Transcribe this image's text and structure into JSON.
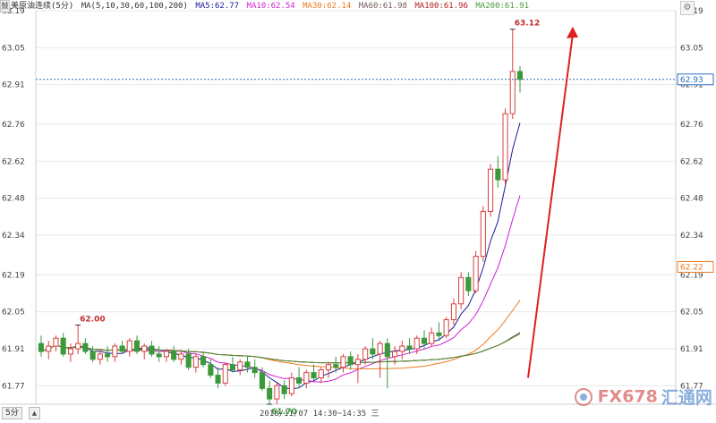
{
  "app": {
    "corner_label": "鼓",
    "symbol": "美原油连续(5分)",
    "ma_label": "MA(5,10,30,60,100,200)",
    "period_label": "5分",
    "time_label": "2018/11/07 14:30~14:35 三",
    "watermark_a": "FX678",
    "watermark_b": "汇通网"
  },
  "indicators": [
    {
      "text": "MA5:62.77",
      "color": "#1a1a9c"
    },
    {
      "text": "MA10:62.54",
      "color": "#d21ed2"
    },
    {
      "text": "MA30:62.14",
      "color": "#f07a1e"
    },
    {
      "text": "MA60:61.98",
      "color": "#7a5a5a"
    },
    {
      "text": "MA100:61.96",
      "color": "#b02020"
    },
    {
      "text": "MA200:61.91",
      "color": "#4a9a3a"
    }
  ],
  "chart_data": {
    "type": "candlestick",
    "title": "美原油连续(5分)",
    "yticks": [
      "63.19",
      "63.05",
      "62.91",
      "62.76",
      "62.62",
      "62.48",
      "62.34",
      "62.19",
      "62.05",
      "61.91",
      "61.77"
    ],
    "ylim": [
      61.7,
      63.19
    ],
    "annotations": [
      {
        "text": "63.12",
        "value": 63.12,
        "kind": "high"
      },
      {
        "text": "62.00",
        "value": 62.0,
        "kind": "high"
      },
      {
        "text": "61.70",
        "value": 61.7,
        "kind": "low"
      }
    ],
    "price_line": {
      "value": 62.93,
      "label": "62.93",
      "color": "#2a6fc0"
    },
    "right_price_tag": {
      "value": 62.22,
      "label": "62.22",
      "color": "#f07a1e"
    },
    "colors": {
      "up": "#d94040",
      "down": "#3a9a3a",
      "grid": "#e8e8e8",
      "text": "#444444",
      "arrow": "#e02020"
    },
    "candles": [
      {
        "o": 61.93,
        "h": 61.96,
        "l": 61.88,
        "c": 61.9
      },
      {
        "o": 61.9,
        "h": 61.94,
        "l": 61.87,
        "c": 61.92
      },
      {
        "o": 61.92,
        "h": 61.96,
        "l": 61.9,
        "c": 61.95
      },
      {
        "o": 61.95,
        "h": 61.97,
        "l": 61.88,
        "c": 61.89
      },
      {
        "o": 61.89,
        "h": 61.93,
        "l": 61.86,
        "c": 61.91
      },
      {
        "o": 61.91,
        "h": 62.0,
        "l": 61.89,
        "c": 61.93
      },
      {
        "o": 61.93,
        "h": 61.95,
        "l": 61.89,
        "c": 61.9
      },
      {
        "o": 61.9,
        "h": 61.92,
        "l": 61.86,
        "c": 61.87
      },
      {
        "o": 61.87,
        "h": 61.91,
        "l": 61.85,
        "c": 61.89
      },
      {
        "o": 61.89,
        "h": 61.92,
        "l": 61.86,
        "c": 61.88
      },
      {
        "o": 61.88,
        "h": 61.93,
        "l": 61.86,
        "c": 61.92
      },
      {
        "o": 61.92,
        "h": 61.94,
        "l": 61.89,
        "c": 61.9
      },
      {
        "o": 61.9,
        "h": 61.95,
        "l": 61.88,
        "c": 61.94
      },
      {
        "o": 61.94,
        "h": 61.96,
        "l": 61.89,
        "c": 61.9
      },
      {
        "o": 61.9,
        "h": 61.93,
        "l": 61.87,
        "c": 61.92
      },
      {
        "o": 61.92,
        "h": 61.94,
        "l": 61.88,
        "c": 61.89
      },
      {
        "o": 61.89,
        "h": 61.92,
        "l": 61.86,
        "c": 61.88
      },
      {
        "o": 61.88,
        "h": 61.91,
        "l": 61.86,
        "c": 61.9
      },
      {
        "o": 61.9,
        "h": 61.92,
        "l": 61.86,
        "c": 61.87
      },
      {
        "o": 61.87,
        "h": 61.9,
        "l": 61.85,
        "c": 61.89
      },
      {
        "o": 61.89,
        "h": 61.91,
        "l": 61.83,
        "c": 61.84
      },
      {
        "o": 61.84,
        "h": 61.89,
        "l": 61.82,
        "c": 61.88
      },
      {
        "o": 61.88,
        "h": 61.9,
        "l": 61.84,
        "c": 61.85
      },
      {
        "o": 61.85,
        "h": 61.87,
        "l": 61.8,
        "c": 61.81
      },
      {
        "o": 61.81,
        "h": 61.84,
        "l": 61.76,
        "c": 61.78
      },
      {
        "o": 61.78,
        "h": 61.86,
        "l": 61.77,
        "c": 61.85
      },
      {
        "o": 61.85,
        "h": 61.88,
        "l": 61.82,
        "c": 61.83
      },
      {
        "o": 61.83,
        "h": 61.87,
        "l": 61.81,
        "c": 61.86
      },
      {
        "o": 61.86,
        "h": 61.88,
        "l": 61.82,
        "c": 61.84
      },
      {
        "o": 61.84,
        "h": 61.87,
        "l": 61.8,
        "c": 61.82
      },
      {
        "o": 61.82,
        "h": 61.84,
        "l": 61.75,
        "c": 61.76
      },
      {
        "o": 61.76,
        "h": 61.79,
        "l": 61.7,
        "c": 61.72
      },
      {
        "o": 61.72,
        "h": 61.78,
        "l": 61.7,
        "c": 61.77
      },
      {
        "o": 61.77,
        "h": 61.79,
        "l": 61.72,
        "c": 61.74
      },
      {
        "o": 61.74,
        "h": 61.82,
        "l": 61.73,
        "c": 61.8
      },
      {
        "o": 61.8,
        "h": 61.84,
        "l": 61.76,
        "c": 61.78
      },
      {
        "o": 61.78,
        "h": 61.83,
        "l": 61.76,
        "c": 61.82
      },
      {
        "o": 61.82,
        "h": 61.85,
        "l": 61.79,
        "c": 61.8
      },
      {
        "o": 61.8,
        "h": 61.84,
        "l": 61.78,
        "c": 61.83
      },
      {
        "o": 61.83,
        "h": 61.86,
        "l": 61.8,
        "c": 61.85
      },
      {
        "o": 61.85,
        "h": 61.88,
        "l": 61.82,
        "c": 61.84
      },
      {
        "o": 61.84,
        "h": 61.89,
        "l": 61.82,
        "c": 61.88
      },
      {
        "o": 61.88,
        "h": 61.9,
        "l": 61.83,
        "c": 61.85
      },
      {
        "o": 61.85,
        "h": 61.89,
        "l": 61.78,
        "c": 61.87
      },
      {
        "o": 61.87,
        "h": 61.92,
        "l": 61.85,
        "c": 61.91
      },
      {
        "o": 61.91,
        "h": 61.95,
        "l": 61.87,
        "c": 61.89
      },
      {
        "o": 61.89,
        "h": 61.94,
        "l": 61.8,
        "c": 61.93
      },
      {
        "o": 61.93,
        "h": 61.95,
        "l": 61.76,
        "c": 61.88
      },
      {
        "o": 61.88,
        "h": 61.92,
        "l": 61.85,
        "c": 61.9
      },
      {
        "o": 61.9,
        "h": 61.94,
        "l": 61.87,
        "c": 61.92
      },
      {
        "o": 61.92,
        "h": 61.95,
        "l": 61.89,
        "c": 61.91
      },
      {
        "o": 61.91,
        "h": 61.96,
        "l": 61.89,
        "c": 61.95
      },
      {
        "o": 61.95,
        "h": 61.98,
        "l": 61.91,
        "c": 61.93
      },
      {
        "o": 61.93,
        "h": 61.99,
        "l": 61.92,
        "c": 61.97
      },
      {
        "o": 61.97,
        "h": 62.01,
        "l": 61.94,
        "c": 61.96
      },
      {
        "o": 61.96,
        "h": 62.03,
        "l": 61.95,
        "c": 62.02
      },
      {
        "o": 62.02,
        "h": 62.1,
        "l": 62.0,
        "c": 62.08
      },
      {
        "o": 62.08,
        "h": 62.2,
        "l": 62.06,
        "c": 62.18
      },
      {
        "o": 62.18,
        "h": 62.2,
        "l": 62.11,
        "c": 62.13
      },
      {
        "o": 62.13,
        "h": 62.28,
        "l": 62.12,
        "c": 62.26
      },
      {
        "o": 62.26,
        "h": 62.45,
        "l": 62.24,
        "c": 62.43
      },
      {
        "o": 62.43,
        "h": 62.61,
        "l": 62.41,
        "c": 62.59
      },
      {
        "o": 62.59,
        "h": 62.64,
        "l": 62.52,
        "c": 62.55
      },
      {
        "o": 62.55,
        "h": 62.82,
        "l": 62.53,
        "c": 62.8
      },
      {
        "o": 62.8,
        "h": 63.12,
        "l": 62.78,
        "c": 62.96
      },
      {
        "o": 62.96,
        "h": 62.98,
        "l": 62.88,
        "c": 62.93
      }
    ]
  }
}
